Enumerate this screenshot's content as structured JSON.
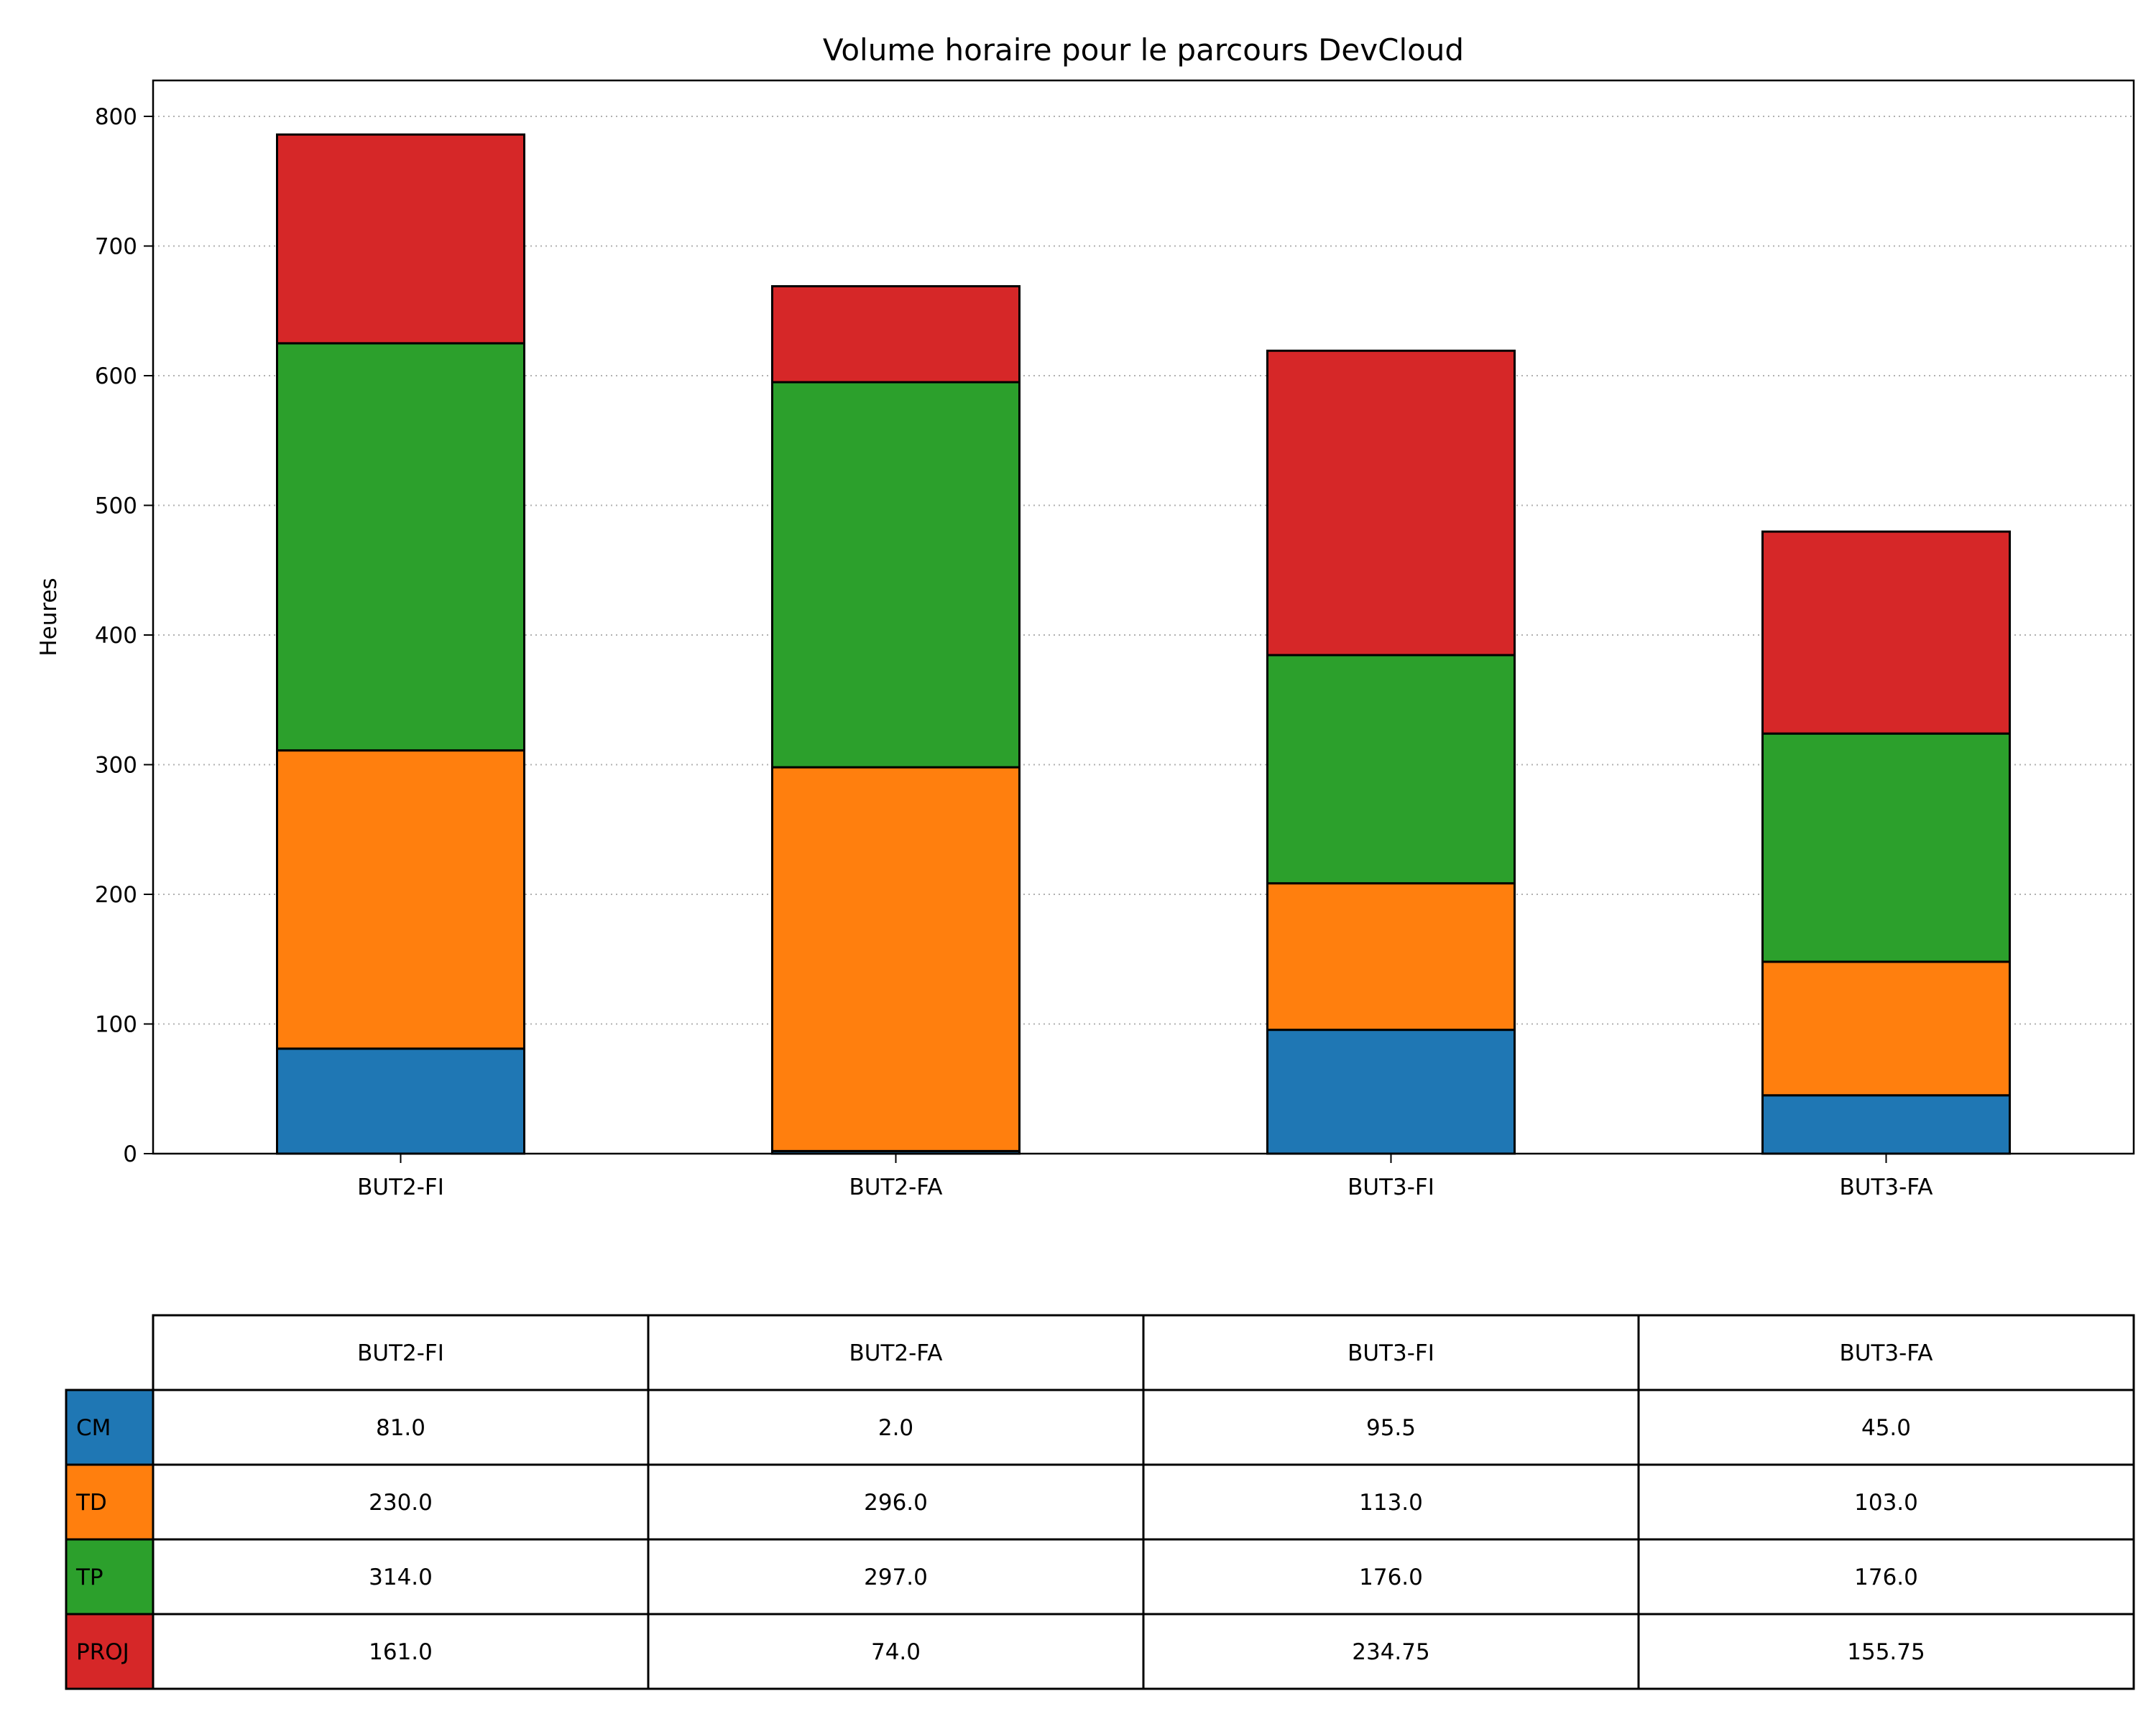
{
  "chart_data": {
    "type": "bar",
    "stacked": true,
    "title": "Volume horaire pour le parcours DevCloud",
    "xlabel": "",
    "ylabel": "Heures",
    "ylim": [
      0,
      830
    ],
    "yticks": [
      "0",
      "100",
      "200",
      "300",
      "400",
      "500",
      "600",
      "700",
      "800"
    ],
    "grid": "y-dotted",
    "categories": [
      "BUT2-FI",
      "BUT2-FA",
      "BUT3-FI",
      "BUT3-FA"
    ],
    "series": [
      {
        "name": "CM",
        "color": "#1f77b4",
        "values": [
          81.0,
          2.0,
          95.5,
          45.0
        ],
        "labels": [
          "81.0",
          "2.0",
          "95.5",
          "45.0"
        ]
      },
      {
        "name": "TD",
        "color": "#ff7f0e",
        "values": [
          230.0,
          296.0,
          113.0,
          103.0
        ],
        "labels": [
          "230.0",
          "296.0",
          "113.0",
          "103.0"
        ]
      },
      {
        "name": "TP",
        "color": "#2ca02c",
        "values": [
          314.0,
          297.0,
          176.0,
          176.0
        ],
        "labels": [
          "314.0",
          "297.0",
          "176.0",
          "176.0"
        ]
      },
      {
        "name": "PROJ",
        "color": "#d62728",
        "values": [
          161.0,
          74.0,
          234.75,
          155.75
        ],
        "labels": [
          "161.0",
          "74.0",
          "234.75",
          "155.75"
        ]
      }
    ],
    "table_below": true
  }
}
